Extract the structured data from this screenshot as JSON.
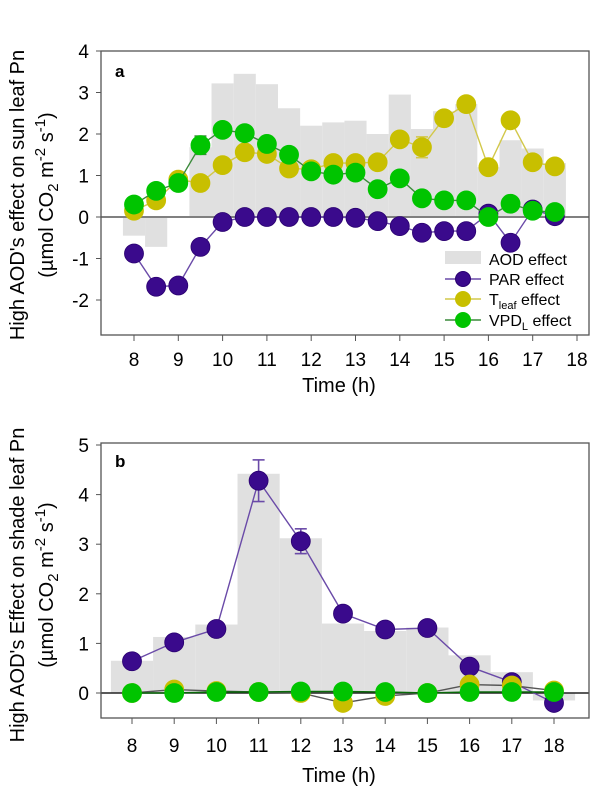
{
  "chart_data": [
    {
      "id": "a",
      "type": "line",
      "panel_label": "a",
      "xlabel": "Time (h)",
      "ylabel_line1": "High AOD's effect on sun leaf Pn",
      "ylabel_line2": "(µmol CO2 m-2 s-1)",
      "xlim": [
        7.25,
        18
      ],
      "ylim": [
        -2.8,
        4
      ],
      "xticks": [
        8,
        9,
        10,
        11,
        12,
        13,
        14,
        15,
        16,
        17,
        18
      ],
      "yticks": [
        -2,
        -1,
        0,
        1,
        2,
        3,
        4
      ],
      "legend_position": "bottom-right",
      "bars": {
        "name": "AOD effect",
        "color": "#e0e0e0",
        "x": [
          8,
          8.5,
          9,
          9.5,
          10,
          10.5,
          11,
          11.5,
          12,
          12.5,
          13,
          13.5,
          14,
          14.5,
          15,
          15.5,
          16,
          16.5,
          17,
          17.5
        ],
        "values": [
          -0.45,
          -0.72,
          0.0,
          1.68,
          3.22,
          3.45,
          3.2,
          2.62,
          2.2,
          2.28,
          2.32,
          2.0,
          2.95,
          2.12,
          2.55,
          2.72,
          1.2,
          1.85,
          1.65,
          1.3
        ]
      },
      "series": [
        {
          "name": "PAR effect",
          "color": "#3a0a8c",
          "line_color": "#6a4aa8",
          "x": [
            8,
            8.5,
            9,
            9.5,
            10,
            10.5,
            11,
            11.5,
            12,
            12.5,
            13,
            13.5,
            14,
            14.5,
            15,
            15.5,
            16,
            16.5,
            17,
            17.5
          ],
          "values": [
            -0.88,
            -1.68,
            -1.65,
            -0.72,
            -0.12,
            0.0,
            0.0,
            0.0,
            0.0,
            0.0,
            -0.02,
            -0.1,
            -0.22,
            -0.38,
            -0.34,
            -0.34,
            0.08,
            -0.62,
            0.18,
            0.02
          ],
          "errors": [
            0,
            0,
            0.08,
            0,
            0.12,
            0,
            0,
            0,
            0,
            0,
            0,
            0.1,
            0.12,
            0,
            0,
            0,
            0,
            0,
            0,
            0
          ]
        },
        {
          "name": "T_leaf effect",
          "color": "#c8bf00",
          "line_color": "#d2c84a",
          "x": [
            8,
            8.5,
            9,
            9.5,
            10,
            10.5,
            11,
            11.5,
            12,
            12.5,
            13,
            13.5,
            14,
            14.5,
            15,
            15.5,
            16,
            16.5,
            17,
            17.5
          ],
          "values": [
            0.15,
            0.4,
            0.9,
            0.82,
            1.25,
            1.56,
            1.52,
            1.17,
            1.15,
            1.3,
            1.3,
            1.32,
            1.87,
            1.68,
            2.38,
            2.72,
            1.2,
            2.33,
            1.32,
            1.22
          ],
          "errors": [
            0,
            0,
            0,
            0,
            0,
            0,
            0,
            0,
            0,
            0,
            0,
            0,
            0.12,
            0.25,
            0.12,
            0,
            0,
            0,
            0,
            0
          ]
        },
        {
          "name": "VPD_L effect",
          "color": "#00c400",
          "line_color": "#3a8a3a",
          "x": [
            8,
            8.5,
            9,
            9.5,
            10,
            10.5,
            11,
            11.5,
            12,
            12.5,
            13,
            13.5,
            14,
            14.5,
            15,
            15.5,
            16,
            16.5,
            17,
            17.5
          ],
          "values": [
            0.3,
            0.63,
            0.82,
            1.73,
            2.1,
            2.02,
            1.76,
            1.5,
            1.1,
            1.02,
            1.07,
            0.67,
            0.93,
            0.45,
            0.4,
            0.4,
            0.0,
            0.32,
            0.15,
            0.12
          ],
          "errors": [
            0,
            0,
            0,
            0.22,
            0,
            0,
            0,
            0,
            0,
            0,
            0,
            0,
            0.14,
            0,
            0,
            0,
            0,
            0,
            0,
            0
          ]
        }
      ],
      "legend": [
        {
          "label_main": "AOD effect",
          "label_sub": "",
          "label_tail": ""
        },
        {
          "label_main": "PAR effect",
          "label_sub": "",
          "label_tail": ""
        },
        {
          "label_main": "T",
          "label_sub": "leaf",
          "label_tail": " effect"
        },
        {
          "label_main": "VPD",
          "label_sub": "L",
          "label_tail": " effect"
        }
      ]
    },
    {
      "id": "b",
      "type": "line",
      "panel_label": "b",
      "xlabel": "Time (h)",
      "ylabel_line1": "High AOD's Effect on shade leaf Pn",
      "ylabel_line2": "(µmol CO2 m-2 s-1)",
      "xlim": [
        7.25,
        18.5
      ],
      "ylim": [
        -0.5,
        5
      ],
      "xticks": [
        8,
        9,
        10,
        11,
        12,
        13,
        14,
        15,
        16,
        17,
        18
      ],
      "yticks": [
        0,
        1,
        2,
        3,
        4,
        5
      ],
      "bars": {
        "name": "AOD effect",
        "color": "#e0e0e0",
        "x": [
          8,
          9,
          10,
          11,
          12,
          13,
          14,
          15,
          16,
          17,
          18
        ],
        "values": [
          0.65,
          1.13,
          1.38,
          4.42,
          3.12,
          1.4,
          1.25,
          1.32,
          0.76,
          0.42,
          -0.15
        ]
      },
      "series": [
        {
          "name": "PAR effect",
          "color": "#3a0a8c",
          "line_color": "#6a4aa8",
          "x": [
            8,
            9,
            10,
            11,
            12,
            13,
            14,
            15,
            16,
            17,
            18
          ],
          "values": [
            0.64,
            1.02,
            1.29,
            4.28,
            3.06,
            1.6,
            1.28,
            1.31,
            0.53,
            0.22,
            -0.2
          ],
          "errors": [
            0,
            0,
            0,
            0.42,
            0.25,
            0.06,
            0,
            0,
            0.1,
            0,
            0
          ]
        },
        {
          "name": "T_leaf effect",
          "color": "#c8bf00",
          "line_color": "#555555",
          "x": [
            8,
            9,
            10,
            11,
            12,
            13,
            14,
            15,
            16,
            17,
            18
          ],
          "values": [
            0.0,
            0.07,
            0.04,
            0.02,
            0.0,
            -0.2,
            -0.06,
            0.0,
            0.17,
            0.15,
            0.05
          ],
          "errors": [
            0,
            0,
            0,
            0,
            0,
            0,
            0,
            0,
            0,
            0,
            0
          ]
        },
        {
          "name": "VPD_L effect",
          "color": "#00c400",
          "line_color": "#0a6a0a",
          "x": [
            8,
            9,
            10,
            11,
            12,
            13,
            14,
            15,
            16,
            17,
            18
          ],
          "values": [
            0.0,
            0.0,
            0.02,
            0.02,
            0.03,
            0.03,
            0.02,
            0.0,
            0.02,
            0.02,
            0.02
          ],
          "errors": [
            0,
            0,
            0,
            0,
            0,
            0,
            0,
            0,
            0,
            0,
            0
          ]
        }
      ]
    }
  ]
}
